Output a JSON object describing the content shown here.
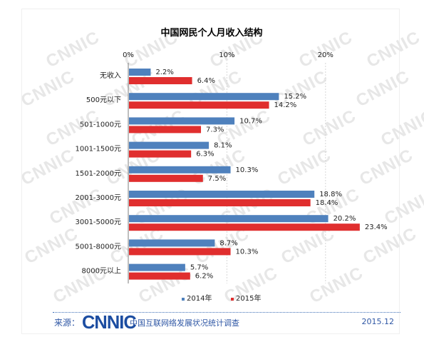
{
  "chart_data": {
    "type": "bar",
    "title": "中国网民个人月收入结构",
    "categories": [
      "无收入",
      "500元以下",
      "501-1000元",
      "1001-1500元",
      "1501-2000元",
      "2001-3000元",
      "3001-5000元",
      "5001-8000元",
      "8000元以上"
    ],
    "series": [
      {
        "name": "2014年",
        "color": "#4f81bd",
        "values": [
          2.2,
          15.2,
          10.7,
          8.1,
          10.3,
          18.8,
          20.2,
          8.7,
          5.7
        ]
      },
      {
        "name": "2015年",
        "color": "#e02e2e",
        "values": [
          6.4,
          14.2,
          7.3,
          6.3,
          7.5,
          18.4,
          23.4,
          10.3,
          6.2
        ]
      }
    ],
    "xlim": [
      0,
      25
    ],
    "xticks": [
      0,
      10,
      20
    ],
    "xtick_labels": [
      "0%",
      "10%",
      "20%"
    ],
    "value_labels": [
      [
        "2.2%",
        "6.4%"
      ],
      [
        "15.2%",
        "14.2%"
      ],
      [
        "10.7%",
        "7.3%"
      ],
      [
        "8.1%",
        "6.3%"
      ],
      [
        "10.3%",
        "7.5%"
      ],
      [
        "18.8%",
        "18.4%"
      ],
      [
        "20.2%",
        "23.4%"
      ],
      [
        "8.7%",
        "10.3%"
      ],
      [
        "5.7%",
        "6.2%"
      ]
    ],
    "legend": {
      "position": "bottom"
    },
    "grid": true,
    "watermark": "CNNIC"
  },
  "footer": {
    "source_label": "来源：",
    "logo": "CNNIC",
    "organization": "中国互联网络发展状况统计调查",
    "date": "2015.12"
  }
}
